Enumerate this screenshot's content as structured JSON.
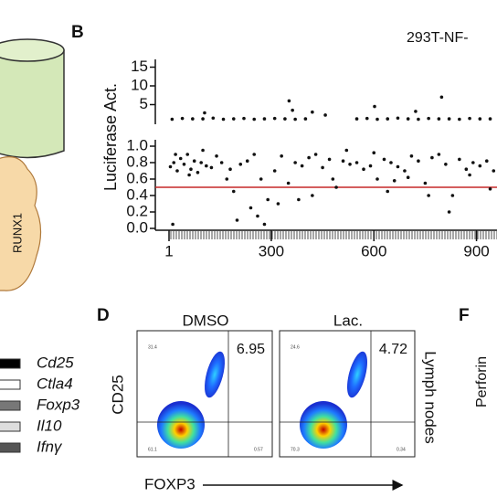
{
  "panel_a": {
    "protein_label": "RUNX1",
    "legend": [
      "Cd25",
      "Ctla4",
      "Foxp3",
      "Il10",
      "Ifnγ"
    ]
  },
  "panel_b": {
    "label": "B",
    "title": "293T-NF-",
    "y_label": "Luciferase Act.",
    "upper": {
      "ylim": [
        0,
        15
      ],
      "yticks": [
        5,
        10,
        15
      ],
      "x": [
        10,
        40,
        70,
        100,
        130,
        160,
        190,
        220,
        250,
        280,
        310,
        340,
        370,
        400,
        550,
        580,
        610,
        640,
        670,
        700,
        730,
        760,
        790,
        820,
        850,
        880,
        910,
        940,
        970,
        105,
        362,
        352,
        420,
        458,
        602,
        798,
        722
      ],
      "y": [
        1.1,
        1.3,
        1.2,
        1.2,
        1.4,
        1.1,
        1.2,
        1.3,
        1.1,
        1.2,
        1.3,
        1.2,
        1.1,
        1.2,
        1.2,
        1.3,
        1.1,
        1.2,
        1.4,
        1.2,
        1.1,
        1.3,
        1.2,
        1.2,
        1.1,
        1.3,
        1.2,
        1.2,
        1.1,
        2.8,
        3.5,
        6,
        3,
        2.2,
        4.5,
        7,
        3.2
      ]
    },
    "lower": {
      "ylim": [
        0,
        1
      ],
      "yticks": [
        {
          "value": 0,
          "label": "0.0"
        },
        {
          "value": 0.2,
          "label": "0.2"
        },
        {
          "value": 0.4,
          "label": "0.4"
        },
        {
          "value": 0.6,
          "label": "0.6"
        },
        {
          "value": 0.8,
          "label": "0.8"
        },
        {
          "value": 1,
          "label": "1.0"
        }
      ],
      "threshold": 0.5,
      "threshold_color": "#c62828",
      "x": [
        5,
        15,
        25,
        35,
        45,
        55,
        65,
        75,
        85,
        95,
        110,
        125,
        140,
        155,
        170,
        190,
        210,
        230,
        250,
        270,
        290,
        310,
        330,
        350,
        370,
        390,
        410,
        430,
        450,
        470,
        490,
        510,
        530,
        550,
        570,
        590,
        610,
        630,
        650,
        670,
        690,
        710,
        730,
        750,
        770,
        790,
        810,
        830,
        850,
        870,
        890,
        910,
        930,
        950,
        970,
        20,
        60,
        100,
        200,
        240,
        280,
        320,
        420,
        480,
        520,
        600,
        640,
        700,
        760,
        820,
        880,
        940,
        12,
        180,
        260,
        380,
        660
      ],
      "y": [
        0.75,
        0.8,
        0.7,
        0.85,
        0.78,
        0.9,
        0.72,
        0.82,
        0.68,
        0.8,
        0.76,
        0.74,
        0.88,
        0.8,
        0.6,
        0.45,
        0.78,
        0.82,
        0.9,
        0.6,
        0.35,
        0.7,
        0.88,
        0.55,
        0.8,
        0.76,
        0.86,
        0.9,
        0.74,
        0.84,
        0.5,
        0.82,
        0.78,
        0.8,
        0.72,
        0.76,
        0.6,
        0.84,
        0.8,
        0.75,
        0.7,
        0.88,
        0.82,
        0.55,
        0.86,
        0.9,
        0.78,
        0.4,
        0.84,
        0.72,
        0.8,
        0.76,
        0.82,
        0.7,
        0.85,
        0.9,
        0.65,
        0.95,
        0.1,
        0.25,
        0.05,
        0.3,
        0.4,
        0.6,
        0.95,
        0.92,
        0.45,
        0.62,
        0.4,
        0.2,
        0.65,
        0.48,
        0.05,
        0.72,
        0.15,
        0.35,
        0.58
      ]
    },
    "xlim": [
      1,
      1000
    ],
    "xticks": [
      1,
      300,
      600,
      900
    ]
  },
  "panel_d": {
    "label": "D",
    "y_label": "CD25",
    "x_label": "FOXP3",
    "side_label": "Lymph nodes",
    "plots": [
      {
        "title": "DMSO",
        "q1": "6.95",
        "q1_small": "31.4",
        "q3_small": "0.57",
        "q4_small": "61.1"
      },
      {
        "title": "Lac.",
        "q1": "4.72",
        "q1_small": "24.6",
        "q3_small": "0.34",
        "q4_small": "70.3"
      }
    ]
  },
  "panel_f": {
    "label": "F",
    "y_label": "Perforin"
  }
}
